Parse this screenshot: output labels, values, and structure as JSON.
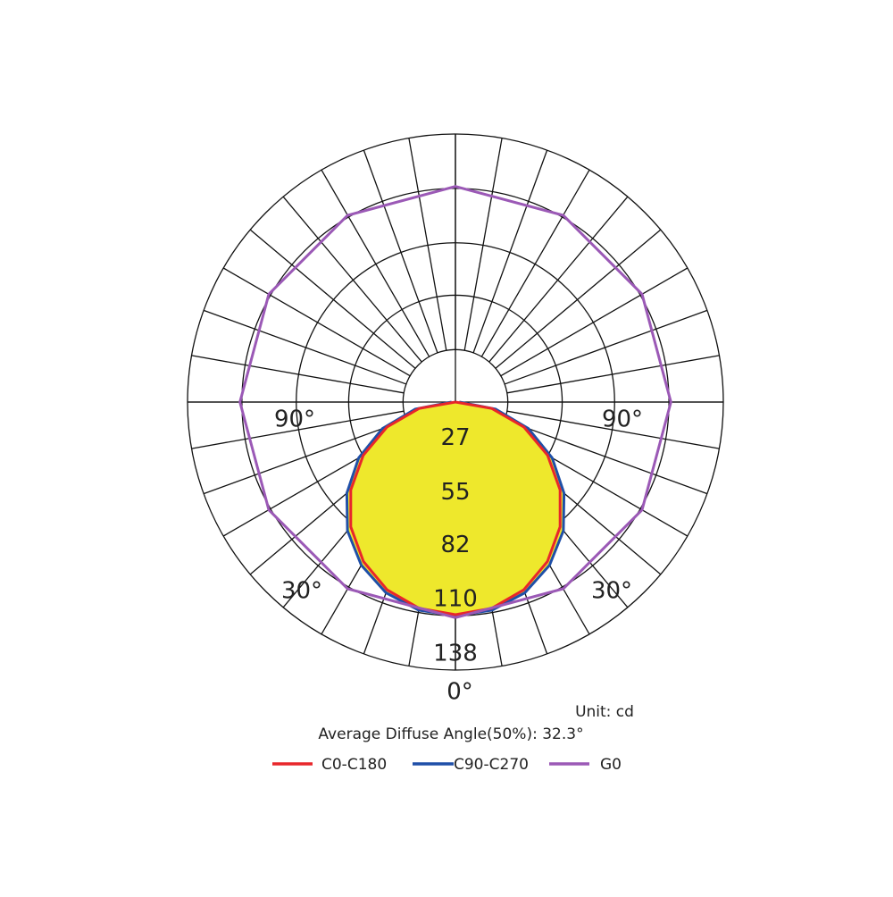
{
  "chart_data": {
    "type": "polar",
    "rlim": [
      0,
      138
    ],
    "rticks": [
      27,
      55,
      82,
      110,
      138
    ],
    "thetaticks": [
      {
        "value": -90,
        "label": "90°"
      },
      {
        "value": -30,
        "label": "30°"
      },
      {
        "value": 0,
        "label": "0°"
      },
      {
        "value": 30,
        "label": "30°"
      },
      {
        "value": 90,
        "label": "90°"
      }
    ],
    "unit": "Unit: cd",
    "annotation": "Average Diffuse Angle(50%): 32.3°",
    "series": [
      {
        "name": "C0-C180",
        "color": "#e8262b",
        "angles": [
          -90,
          -80,
          -70,
          -60,
          -50,
          -40,
          -30,
          -20,
          -10,
          0,
          10,
          20,
          30,
          40,
          50,
          60,
          70,
          80,
          90
        ],
        "values": [
          0,
          19.0,
          37.5,
          54.8,
          70.4,
          83.9,
          94.8,
          102.9,
          107.8,
          109.5,
          107.8,
          102.9,
          94.8,
          83.9,
          70.4,
          54.8,
          37.5,
          19.0,
          0
        ]
      },
      {
        "name": "C90-C270",
        "color": "#1f4fa8",
        "fill": "#eee82c",
        "angles": [
          -90,
          -80,
          -70,
          -60,
          -50,
          -40,
          -30,
          -20,
          -10,
          0,
          10,
          20,
          30,
          40,
          50,
          60,
          70,
          80,
          90
        ],
        "values": [
          2,
          21,
          40,
          57.5,
          73,
          86.5,
          97,
          104.5,
          108.8,
          110,
          108.8,
          104.5,
          97,
          86.5,
          73,
          57.5,
          40,
          21,
          2
        ]
      },
      {
        "name": "G0",
        "color": "#9b59b6",
        "angles": [
          0,
          30,
          60,
          90,
          120,
          150,
          180,
          210,
          240,
          270,
          300,
          330,
          360
        ],
        "values": [
          111,
          111,
          111,
          111,
          111,
          111,
          111,
          111,
          111,
          111,
          111,
          111,
          111
        ]
      }
    ]
  }
}
